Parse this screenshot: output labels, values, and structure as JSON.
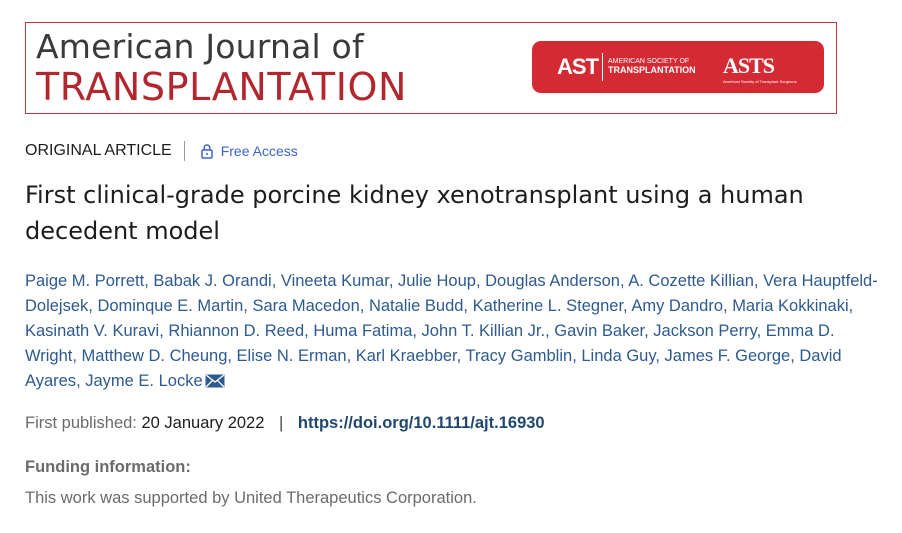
{
  "banner": {
    "journal_line1": "American Journal of",
    "journal_line2": "TRANSPLANTATION",
    "ast_logo": "AST",
    "ast_name_line1": "American Society of",
    "ast_name_line2": "Transplantation",
    "asts_logo": "ASTS",
    "asts_tagline": "American Society of Transplant Surgeons",
    "brand_red": "#c8323a"
  },
  "meta": {
    "article_type": "ORIGINAL ARTICLE",
    "access_label": "Free Access",
    "access_icon": "lock-icon"
  },
  "title": "First clinical-grade porcine kidney xenotransplant using a human decedent model",
  "authors": [
    "Paige M. Porrett",
    "Babak J. Orandi",
    "Vineeta Kumar",
    "Julie Houp",
    "Douglas Anderson",
    "A. Cozette Killian",
    "Vera Hauptfeld-Dolejsek",
    "Dominque E. Martin",
    "Sara Macedon",
    "Natalie Budd",
    "Katherine L. Stegner",
    "Amy Dandro",
    "Maria Kokkinaki",
    "Kasinath V. Kuravi",
    "Rhiannon D. Reed",
    "Huma Fatima",
    "John T. Killian Jr.",
    "Gavin Baker",
    "Jackson Perry",
    "Emma D. Wright",
    "Matthew D. Cheung",
    "Elise N. Erman",
    "Karl Kraebber",
    "Tracy Gamblin",
    "Linda Guy",
    "James F. George",
    "David Ayares",
    "Jayme E. Locke"
  ],
  "publication": {
    "label": "First published:",
    "date": "20 January 2022",
    "divider": "|",
    "doi": "https://doi.org/10.1111/ajt.16930"
  },
  "funding": {
    "heading": "Funding information:",
    "text": "This work was supported by United Therapeutics Corporation."
  }
}
